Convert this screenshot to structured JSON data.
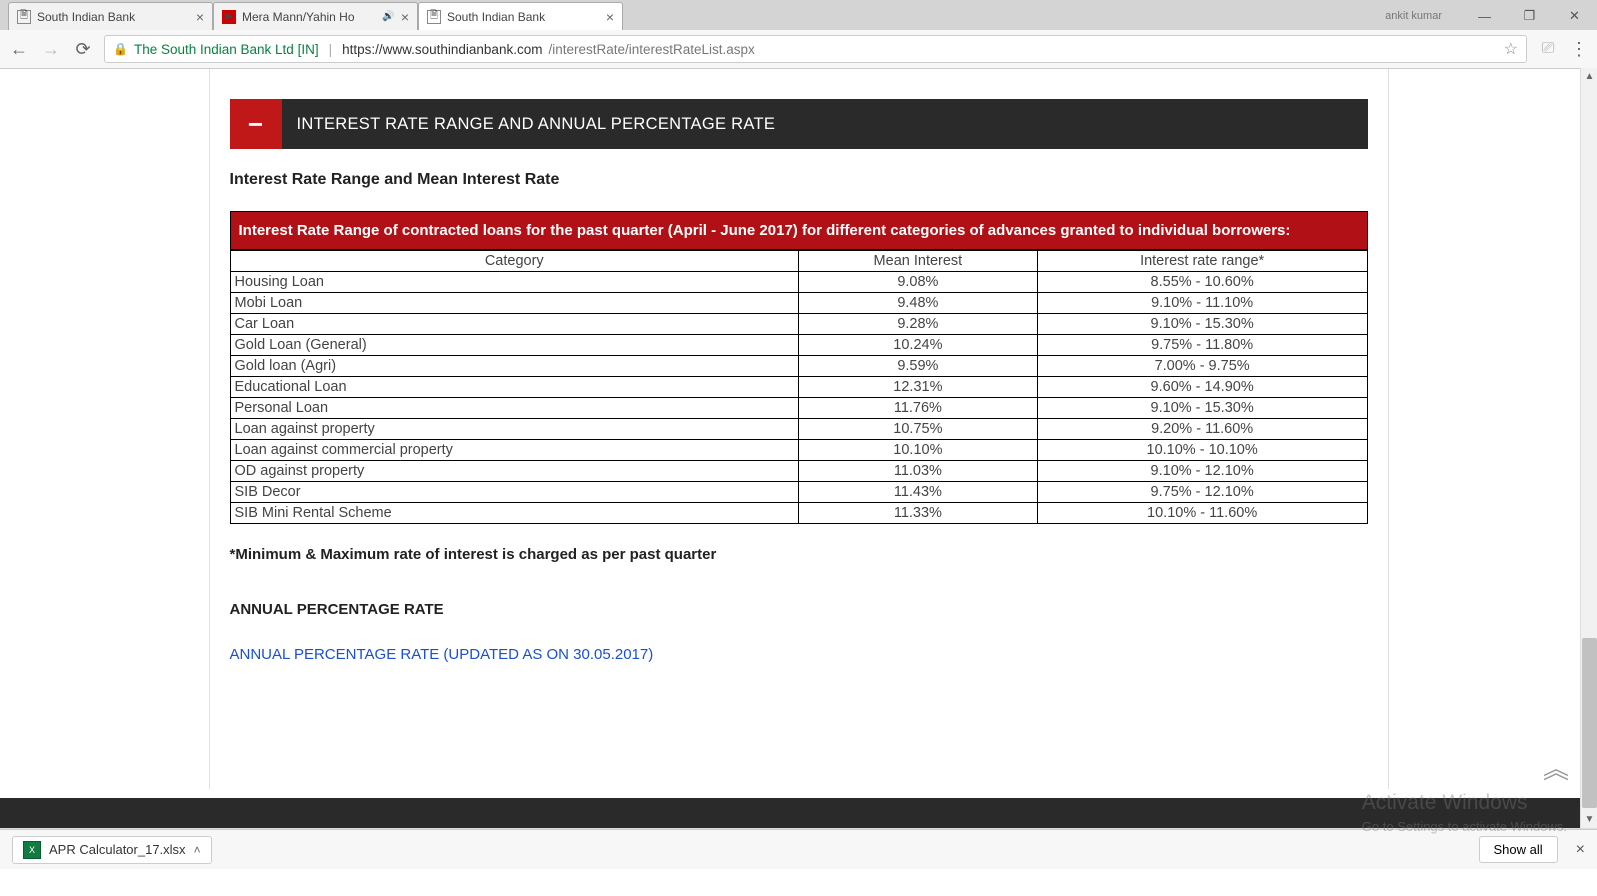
{
  "browser": {
    "tabs": [
      {
        "title": "South Indian Bank",
        "favicon": "doc"
      },
      {
        "title": "Mera Mann/Yahin Ho",
        "favicon": "yt"
      },
      {
        "title": "South Indian Bank",
        "favicon": "doc"
      }
    ],
    "profile": "ankit kumar",
    "url_org": "The South Indian Bank Ltd [IN]",
    "url_host": "https://www.southindianbank.com",
    "url_path": "/interestRate/interestRateList.aspx"
  },
  "page": {
    "accordion_title": "INTEREST RATE RANGE AND ANNUAL PERCENTAGE RATE",
    "subheading": "Interest Rate Range and Mean Interest Rate",
    "table_banner": "Interest Rate Range of contracted loans for the past quarter (April - June 2017) for different categories of advances granted to individual borrowers:",
    "columns": [
      "Category",
      "Mean Interest",
      "Interest rate range*"
    ],
    "rows": [
      {
        "category": "Housing Loan",
        "mean": "9.08%",
        "range": "8.55% - 10.60%"
      },
      {
        "category": "Mobi Loan",
        "mean": "9.48%",
        "range": "9.10% - 11.10%"
      },
      {
        "category": "Car Loan",
        "mean": "9.28%",
        "range": "9.10% - 15.30%"
      },
      {
        "category": "Gold Loan (General)",
        "mean": "10.24%",
        "range": "9.75% - 11.80%"
      },
      {
        "category": "Gold loan (Agri)",
        "mean": "9.59%",
        "range": "7.00% - 9.75%"
      },
      {
        "category": "Educational Loan",
        "mean": "12.31%",
        "range": "9.60% - 14.90%"
      },
      {
        "category": "Personal Loan",
        "mean": "11.76%",
        "range": "9.10% - 15.30%"
      },
      {
        "category": "Loan against property",
        "mean": "10.75%",
        "range": "9.20% - 11.60%"
      },
      {
        "category": "Loan against commercial property",
        "mean": "10.10%",
        "range": "10.10% - 10.10%"
      },
      {
        "category": "OD against property",
        "mean": "11.03%",
        "range": "9.10% - 12.10%"
      },
      {
        "category": "SIB Decor",
        "mean": "11.43%",
        "range": "9.75% - 12.10%"
      },
      {
        "category": "SIB Mini Rental Scheme",
        "mean": "11.33%",
        "range": "10.10% - 11.60%"
      }
    ],
    "footnote": "*Minimum & Maximum rate of interest is charged as per past quarter",
    "apr_heading": "ANNUAL PERCENTAGE RATE",
    "apr_link": "ANNUAL PERCENTAGE RATE (UPDATED AS ON 30.05.2017)"
  },
  "download": {
    "filename": "APR Calculator_17.xlsx",
    "show_all": "Show all"
  },
  "watermark": {
    "title": "Activate Windows",
    "sub": "Go to Settings to activate Windows."
  }
}
